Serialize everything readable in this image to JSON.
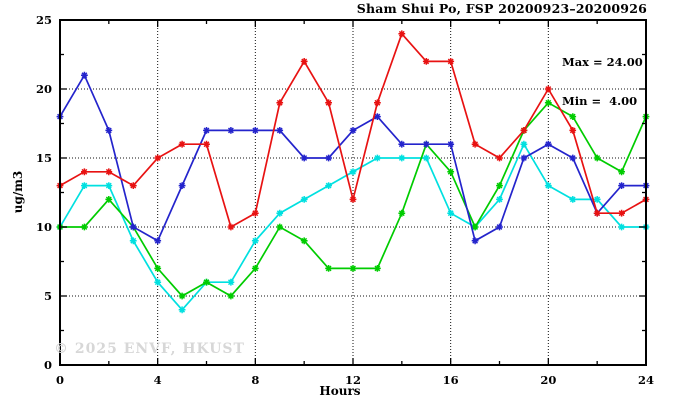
{
  "header": {
    "title": "Sham Shui Po, FSP 20200923–20200926"
  },
  "annotation": {
    "max_label": "Max = 24.00",
    "min_label": "Min =  4.00"
  },
  "watermark": "© 2025 ENVF, HKUST",
  "chart_data": {
    "type": "line",
    "title": "Sham Shui Po, FSP 20200923–20200926",
    "xlabel": "Hours",
    "ylabel": "ug/m3",
    "xlim": [
      0,
      24
    ],
    "ylim": [
      0,
      25
    ],
    "x_major_ticks": [
      0,
      4,
      8,
      12,
      16,
      20,
      24
    ],
    "x_minor_step": 2,
    "y_major_ticks": [
      0,
      5,
      10,
      15,
      20,
      25
    ],
    "y_minor_step": 2.5,
    "grid": "dotted lines at major ticks, ticks point inward on all four borders",
    "legend_position": "none",
    "stats": {
      "max": 24.0,
      "min": 4.0
    },
    "x": [
      0,
      1,
      2,
      3,
      4,
      5,
      6,
      7,
      8,
      9,
      10,
      11,
      12,
      13,
      14,
      15,
      16,
      17,
      18,
      19,
      20,
      21,
      22,
      23,
      24
    ],
    "series": [
      {
        "name": "cyan",
        "color": "#00e0e0",
        "values": [
          10,
          13,
          13,
          9,
          6,
          4,
          6,
          6,
          9,
          11,
          12,
          13,
          14,
          15,
          15,
          15,
          11,
          10,
          12,
          16,
          13,
          12,
          12,
          10,
          10
        ]
      },
      {
        "name": "green",
        "color": "#00cc00",
        "values": [
          10,
          10,
          12,
          10,
          7,
          5,
          6,
          5,
          7,
          10,
          9,
          7,
          7,
          7,
          11,
          16,
          14,
          10,
          13,
          17,
          19,
          18,
          15,
          14,
          18
        ]
      },
      {
        "name": "blue",
        "color": "#2424cc",
        "values": [
          18,
          21,
          17,
          10,
          9,
          13,
          17,
          17,
          17,
          17,
          15,
          15,
          17,
          18,
          16,
          16,
          16,
          9,
          10,
          15,
          16,
          15,
          11,
          13,
          13
        ]
      },
      {
        "name": "red",
        "color": "#e81212",
        "values": [
          13,
          14,
          14,
          13,
          15,
          16,
          16,
          10,
          11,
          19,
          22,
          19,
          12,
          19,
          24,
          22,
          22,
          16,
          15,
          17,
          20,
          17,
          11,
          11,
          12
        ]
      }
    ]
  }
}
